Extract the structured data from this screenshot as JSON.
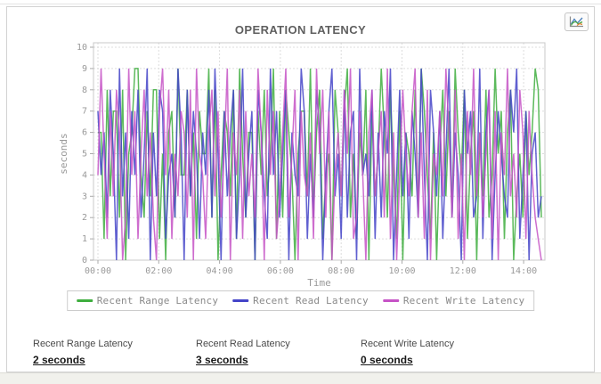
{
  "header": {
    "title": "OPERATION LATENCY"
  },
  "toolbar": {
    "chart_type_button": "line-chart-icon"
  },
  "stats": [
    {
      "label": "Recent Range Latency",
      "value": "2 seconds"
    },
    {
      "label": "Recent Read Latency",
      "value": "3 seconds"
    },
    {
      "label": "Recent Write Latency",
      "value": "0 seconds"
    }
  ],
  "chart_data": {
    "type": "line",
    "title": "OPERATION LATENCY",
    "xlabel": "Time",
    "ylabel": "seconds",
    "ylim": [
      0,
      10
    ],
    "y_tick_step": 1,
    "grid": "dashed",
    "legend_position": "bottom",
    "x_ticks": [
      "00:00",
      "02:00",
      "04:00",
      "06:00",
      "08:00",
      "10:00",
      "12:00",
      "14:00"
    ],
    "x_tick_interval_minutes": 120,
    "x_range_minutes": [
      0,
      880
    ],
    "series": [
      {
        "name": "Recent Range Latency",
        "color": "#3fae3f",
        "values": [
          6,
          6,
          1,
          8,
          3,
          7,
          7,
          2,
          8,
          0,
          5,
          6,
          9,
          9,
          4,
          2,
          7,
          3,
          8,
          8,
          1,
          5,
          0,
          6,
          7,
          2,
          9,
          4,
          4,
          8,
          3,
          6,
          1,
          7,
          5,
          5,
          9,
          2,
          8,
          0,
          4,
          7,
          6,
          3,
          8,
          1,
          9,
          5,
          2,
          6,
          6,
          0,
          7,
          4,
          8,
          3,
          5,
          9,
          1,
          7,
          2,
          8,
          6,
          4,
          0,
          5,
          7,
          7,
          3,
          9,
          2,
          6,
          8,
          1,
          4,
          5,
          0,
          8,
          6,
          3,
          7,
          9,
          2,
          5,
          1,
          6,
          4,
          8,
          0,
          7,
          3,
          5,
          9,
          6,
          2,
          8,
          4,
          1,
          7,
          0,
          6,
          5,
          3,
          8,
          2,
          9,
          7,
          4,
          1,
          6,
          0,
          5,
          8,
          3,
          7,
          2,
          9,
          6,
          4,
          8,
          1,
          5,
          7,
          0,
          6,
          3,
          8,
          2,
          4,
          9,
          5,
          7,
          1,
          6,
          8,
          0,
          3,
          5,
          2,
          7,
          4,
          6,
          9,
          8,
          2
        ]
      },
      {
        "name": "Recent Read Latency",
        "color": "#4444c8",
        "values": [
          7,
          4,
          6,
          2,
          8,
          5,
          0,
          9,
          3,
          6,
          1,
          7,
          4,
          8,
          2,
          5,
          9,
          0,
          6,
          3,
          8,
          7,
          1,
          4,
          5,
          2,
          9,
          6,
          0,
          8,
          3,
          7,
          5,
          1,
          6,
          4,
          8,
          2,
          9,
          5,
          0,
          7,
          3,
          6,
          8,
          1,
          4,
          9,
          2,
          5,
          7,
          0,
          8,
          6,
          3,
          1,
          9,
          4,
          7,
          2,
          5,
          8,
          0,
          6,
          4,
          3,
          9,
          7,
          1,
          5,
          2,
          8,
          6,
          0,
          4,
          7,
          9,
          3,
          5,
          1,
          8,
          2,
          6,
          7,
          0,
          9,
          4,
          5,
          3,
          8,
          1,
          6,
          2,
          7,
          5,
          9,
          0,
          4,
          8,
          3,
          6,
          1,
          7,
          5,
          2,
          9,
          4,
          0,
          8,
          6,
          3,
          7,
          1,
          5,
          9,
          2,
          6,
          4,
          0,
          8,
          5,
          7,
          2,
          3,
          9,
          1,
          6,
          8,
          0,
          4,
          7,
          5,
          3,
          2,
          8,
          6,
          9,
          1,
          4,
          7,
          0,
          5,
          6,
          2,
          3
        ]
      },
      {
        "name": "Recent Write Latency",
        "color": "#c653c6",
        "values": [
          4,
          9,
          5,
          1,
          7,
          3,
          8,
          6,
          0,
          2,
          9,
          4,
          7,
          1,
          5,
          8,
          3,
          6,
          2,
          0,
          7,
          9,
          4,
          8,
          1,
          5,
          3,
          7,
          6,
          2,
          8,
          0,
          9,
          5,
          4,
          1,
          6,
          8,
          3,
          7,
          2,
          5,
          9,
          0,
          6,
          4,
          8,
          1,
          7,
          3,
          5,
          2,
          9,
          6,
          0,
          8,
          4,
          7,
          1,
          3,
          6,
          9,
          2,
          5,
          8,
          0,
          7,
          4,
          3,
          6,
          1,
          9,
          5,
          8,
          2,
          7,
          0,
          4,
          6,
          3,
          8,
          5,
          9,
          1,
          2,
          7,
          4,
          0,
          6,
          8,
          3,
          5,
          7,
          2,
          9,
          1,
          6,
          0,
          4,
          8,
          5,
          3,
          7,
          9,
          2,
          6,
          1,
          8,
          0,
          5,
          4,
          7,
          3,
          9,
          6,
          2,
          8,
          1,
          5,
          0,
          7,
          4,
          9,
          3,
          6,
          2,
          5,
          8,
          1,
          7,
          0,
          6,
          4,
          9,
          3,
          5,
          2,
          8,
          6,
          1,
          7,
          4,
          2,
          1,
          0
        ]
      }
    ]
  }
}
